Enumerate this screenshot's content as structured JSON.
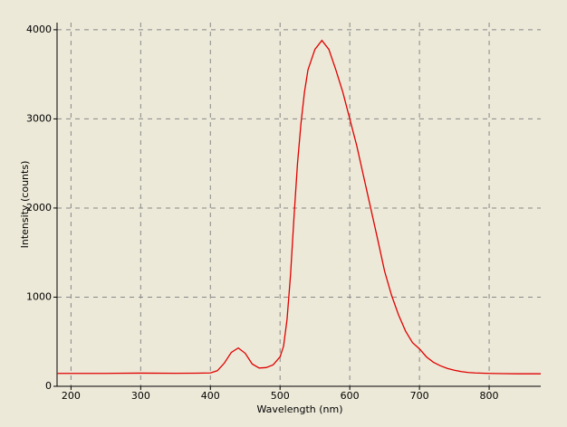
{
  "chart_data": {
    "type": "line",
    "x_label": "Wavelength (nm)",
    "y_label": "Intensity (counts)",
    "x": [
      180,
      200,
      250,
      300,
      350,
      380,
      400,
      410,
      420,
      430,
      440,
      450,
      460,
      470,
      480,
      490,
      500,
      505,
      510,
      515,
      520,
      525,
      530,
      535,
      540,
      550,
      560,
      570,
      580,
      590,
      600,
      610,
      620,
      630,
      640,
      650,
      660,
      670,
      680,
      690,
      700,
      710,
      720,
      730,
      740,
      750,
      760,
      770,
      780,
      800,
      820,
      840,
      874
    ],
    "series": [
      {
        "name": "Intensity",
        "color": "#e00000",
        "values": [
          145,
          145,
          145,
          148,
          146,
          147,
          150,
          175,
          260,
          380,
          430,
          370,
          250,
          205,
          210,
          240,
          330,
          450,
          750,
          1250,
          1900,
          2500,
          2950,
          3300,
          3550,
          3780,
          3880,
          3780,
          3550,
          3300,
          3000,
          2700,
          2350,
          2000,
          1650,
          1290,
          1020,
          800,
          620,
          490,
          420,
          330,
          270,
          230,
          200,
          180,
          165,
          155,
          150,
          145,
          142,
          140,
          140
        ]
      }
    ],
    "xlim": [
      180,
      874
    ],
    "ylim": [
      0,
      4080
    ],
    "xticks": [
      200,
      300,
      400,
      500,
      600,
      700,
      800
    ],
    "yticks": [
      0,
      1000,
      2000,
      3000,
      4000
    ],
    "grid": true
  }
}
